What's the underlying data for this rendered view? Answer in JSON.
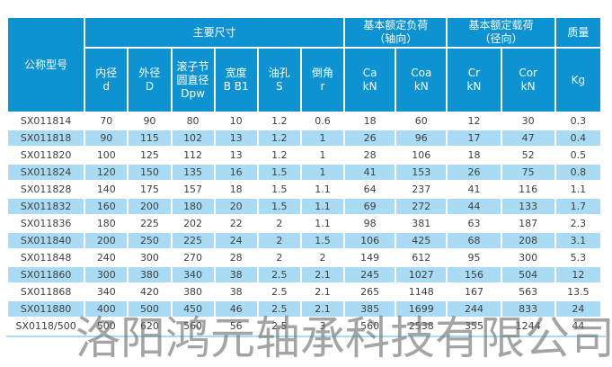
{
  "table": {
    "corner_header": "公称型号",
    "groups": [
      {
        "label": "主要尺寸",
        "span": 6
      },
      {
        "label": "基本额定负荷\n（轴向）",
        "span": 2
      },
      {
        "label": "基本额定载荷\n（径向）",
        "span": 2
      },
      {
        "label": "质量",
        "span": 1
      }
    ],
    "columns": [
      "内径\nd",
      "外径\nD",
      "滚子节\n圆直径\nDpw",
      "宽度\nB B1",
      "油孔\nS",
      "倒角\nr",
      "Ca\nkN",
      "Coa\nkN",
      "Cr\nkN",
      "Cor\nkN",
      "Kg"
    ],
    "rows": [
      {
        "model": "SX011814",
        "values": [
          "70",
          "90",
          "80",
          "10",
          "1.2",
          "0.6",
          "18",
          "60",
          "12",
          "30",
          "0.3"
        ]
      },
      {
        "model": "SX011818",
        "values": [
          "90",
          "115",
          "102",
          "13",
          "1.2",
          "1",
          "26",
          "96",
          "17",
          "47",
          "0.4"
        ]
      },
      {
        "model": "SX011820",
        "values": [
          "100",
          "125",
          "112",
          "13",
          "1.2",
          "1",
          "28",
          "106",
          "18",
          "52",
          "0.5"
        ]
      },
      {
        "model": "SX011824",
        "values": [
          "120",
          "150",
          "135",
          "16",
          "1.5",
          "1",
          "41",
          "153",
          "26",
          "75",
          "0.8"
        ]
      },
      {
        "model": "SX011828",
        "values": [
          "140",
          "175",
          "157",
          "18",
          "1.5",
          "1.1",
          "64",
          "237",
          "41",
          "116",
          "1.1"
        ]
      },
      {
        "model": "SX011832",
        "values": [
          "160",
          "200",
          "180",
          "20",
          "1.5",
          "1.1",
          "69",
          "272",
          "44",
          "133",
          "1.7"
        ]
      },
      {
        "model": "SX011836",
        "values": [
          "180",
          "225",
          "202",
          "22",
          "2",
          "1.1",
          "98",
          "381",
          "63",
          "187",
          "2.3"
        ]
      },
      {
        "model": "SX011840",
        "values": [
          "200",
          "250",
          "225",
          "24",
          "2",
          "1.5",
          "106",
          "425",
          "68",
          "208",
          "3.1"
        ]
      },
      {
        "model": "SX011848",
        "values": [
          "240",
          "300",
          "270",
          "28",
          "2",
          "2",
          "149",
          "612",
          "95",
          "300",
          "5.3"
        ]
      },
      {
        "model": "SX011860",
        "values": [
          "300",
          "380",
          "340",
          "38",
          "2.5",
          "2.1",
          "245",
          "1027",
          "156",
          "504",
          "12"
        ]
      },
      {
        "model": "SX011868",
        "values": [
          "340",
          "420",
          "380",
          "38",
          "2.5",
          "2.1",
          "265",
          "1148",
          "167",
          "563",
          "13.5"
        ]
      },
      {
        "model": "SX011880",
        "values": [
          "400",
          "500",
          "450",
          "46",
          "2.5",
          "2.1",
          "385",
          "1699",
          "244",
          "833",
          "24"
        ]
      },
      {
        "model": "SX0118/500",
        "values": [
          "500",
          "620",
          "560",
          "56",
          "2.5",
          "3",
          "560",
          "2538",
          "355",
          "1244",
          "44"
        ]
      }
    ]
  },
  "watermark": "洛阳鸿元轴承科技有限公司",
  "colors": {
    "header_blue": "#0d92d2",
    "row_alt_blue": "#a9dcf4",
    "text_dark": "#3f3f3f",
    "header_text": "#ffffff"
  }
}
